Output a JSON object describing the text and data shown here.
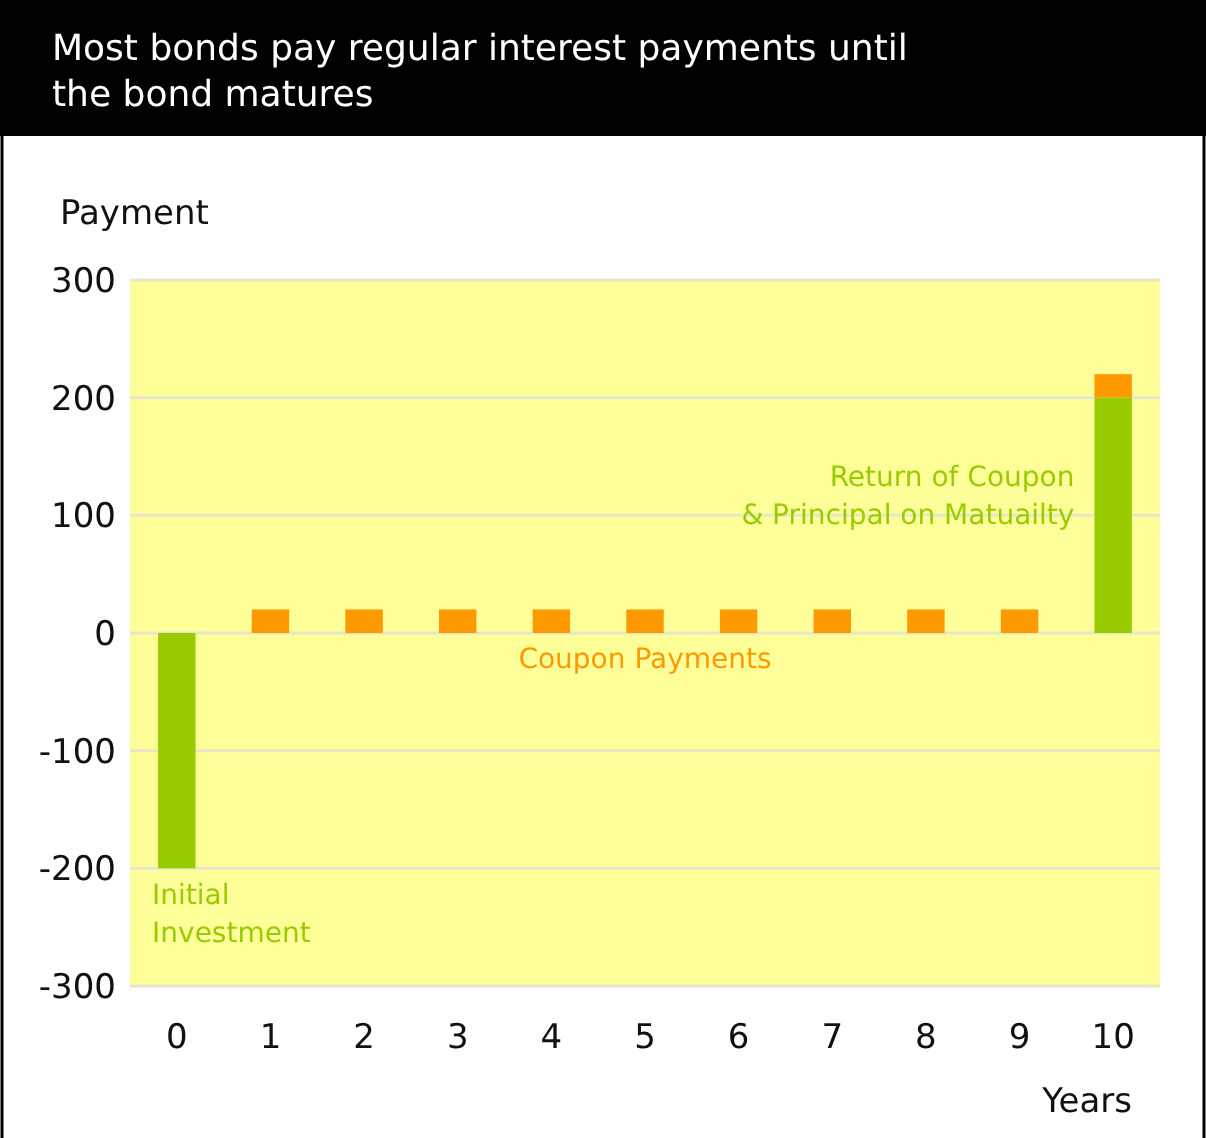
{
  "chart_data": {
    "type": "bar",
    "title": "Most bonds pay regular interest payments until the bond matures",
    "ylabel": "Payment",
    "xlabel": "Years",
    "categories": [
      "0",
      "1",
      "2",
      "3",
      "4",
      "5",
      "6",
      "7",
      "8",
      "9",
      "10"
    ],
    "stacked": true,
    "ylim": [
      -300,
      300
    ],
    "yticks": [
      -300,
      -200,
      -100,
      0,
      100,
      200,
      300
    ],
    "grid": "y",
    "series": [
      {
        "color": "#99cc00",
        "values": [
          -200,
          null,
          null,
          null,
          null,
          null,
          null,
          null,
          null,
          null,
          200
        ]
      },
      {
        "color": "#ff9900",
        "values": [
          null,
          20,
          20,
          20,
          20,
          20,
          20,
          20,
          20,
          20,
          20
        ]
      }
    ],
    "annotations": [
      "Initial\nInvestment",
      "Coupon Payments",
      "Return of Coupon\n& Principal on Matuailty"
    ]
  }
}
